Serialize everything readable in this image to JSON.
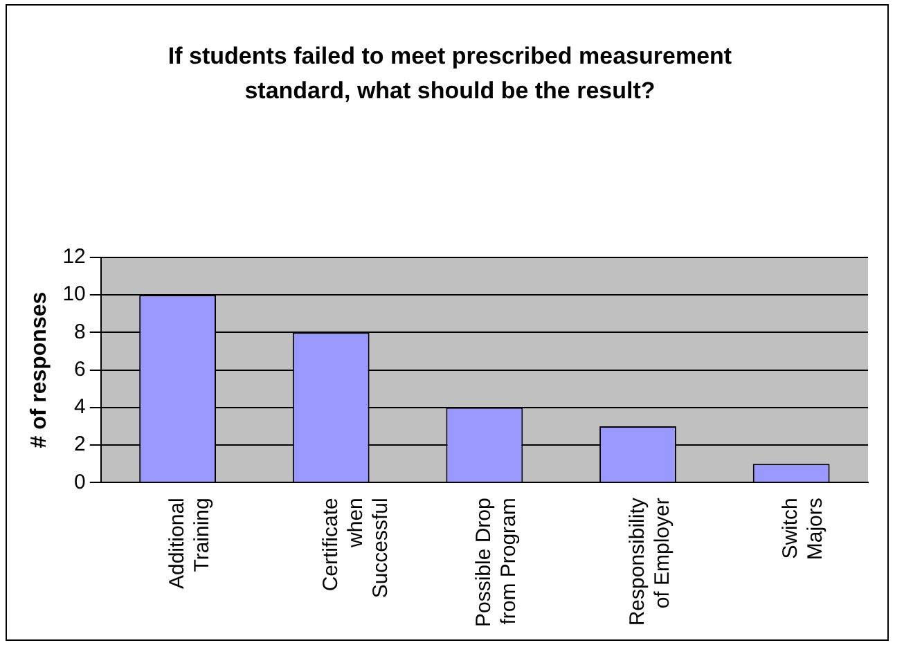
{
  "chart_data": {
    "type": "bar",
    "title": "If students failed to meet prescribed measurement standard, what should be the result?",
    "ylabel": "# of responses",
    "categories": [
      "Additional\nTraining",
      "Certificate\nwhen\nSuccessful",
      "Possible Drop\nfrom Program",
      "Responsibility\nof Employer",
      "Switch\nMajors"
    ],
    "values": [
      10,
      8,
      4,
      3,
      1
    ],
    "color": "#9999ff",
    "ylim": [
      0,
      12
    ],
    "yticks": [
      0,
      2,
      4,
      6,
      8,
      10,
      12
    ],
    "grid": "y",
    "legend": false
  }
}
